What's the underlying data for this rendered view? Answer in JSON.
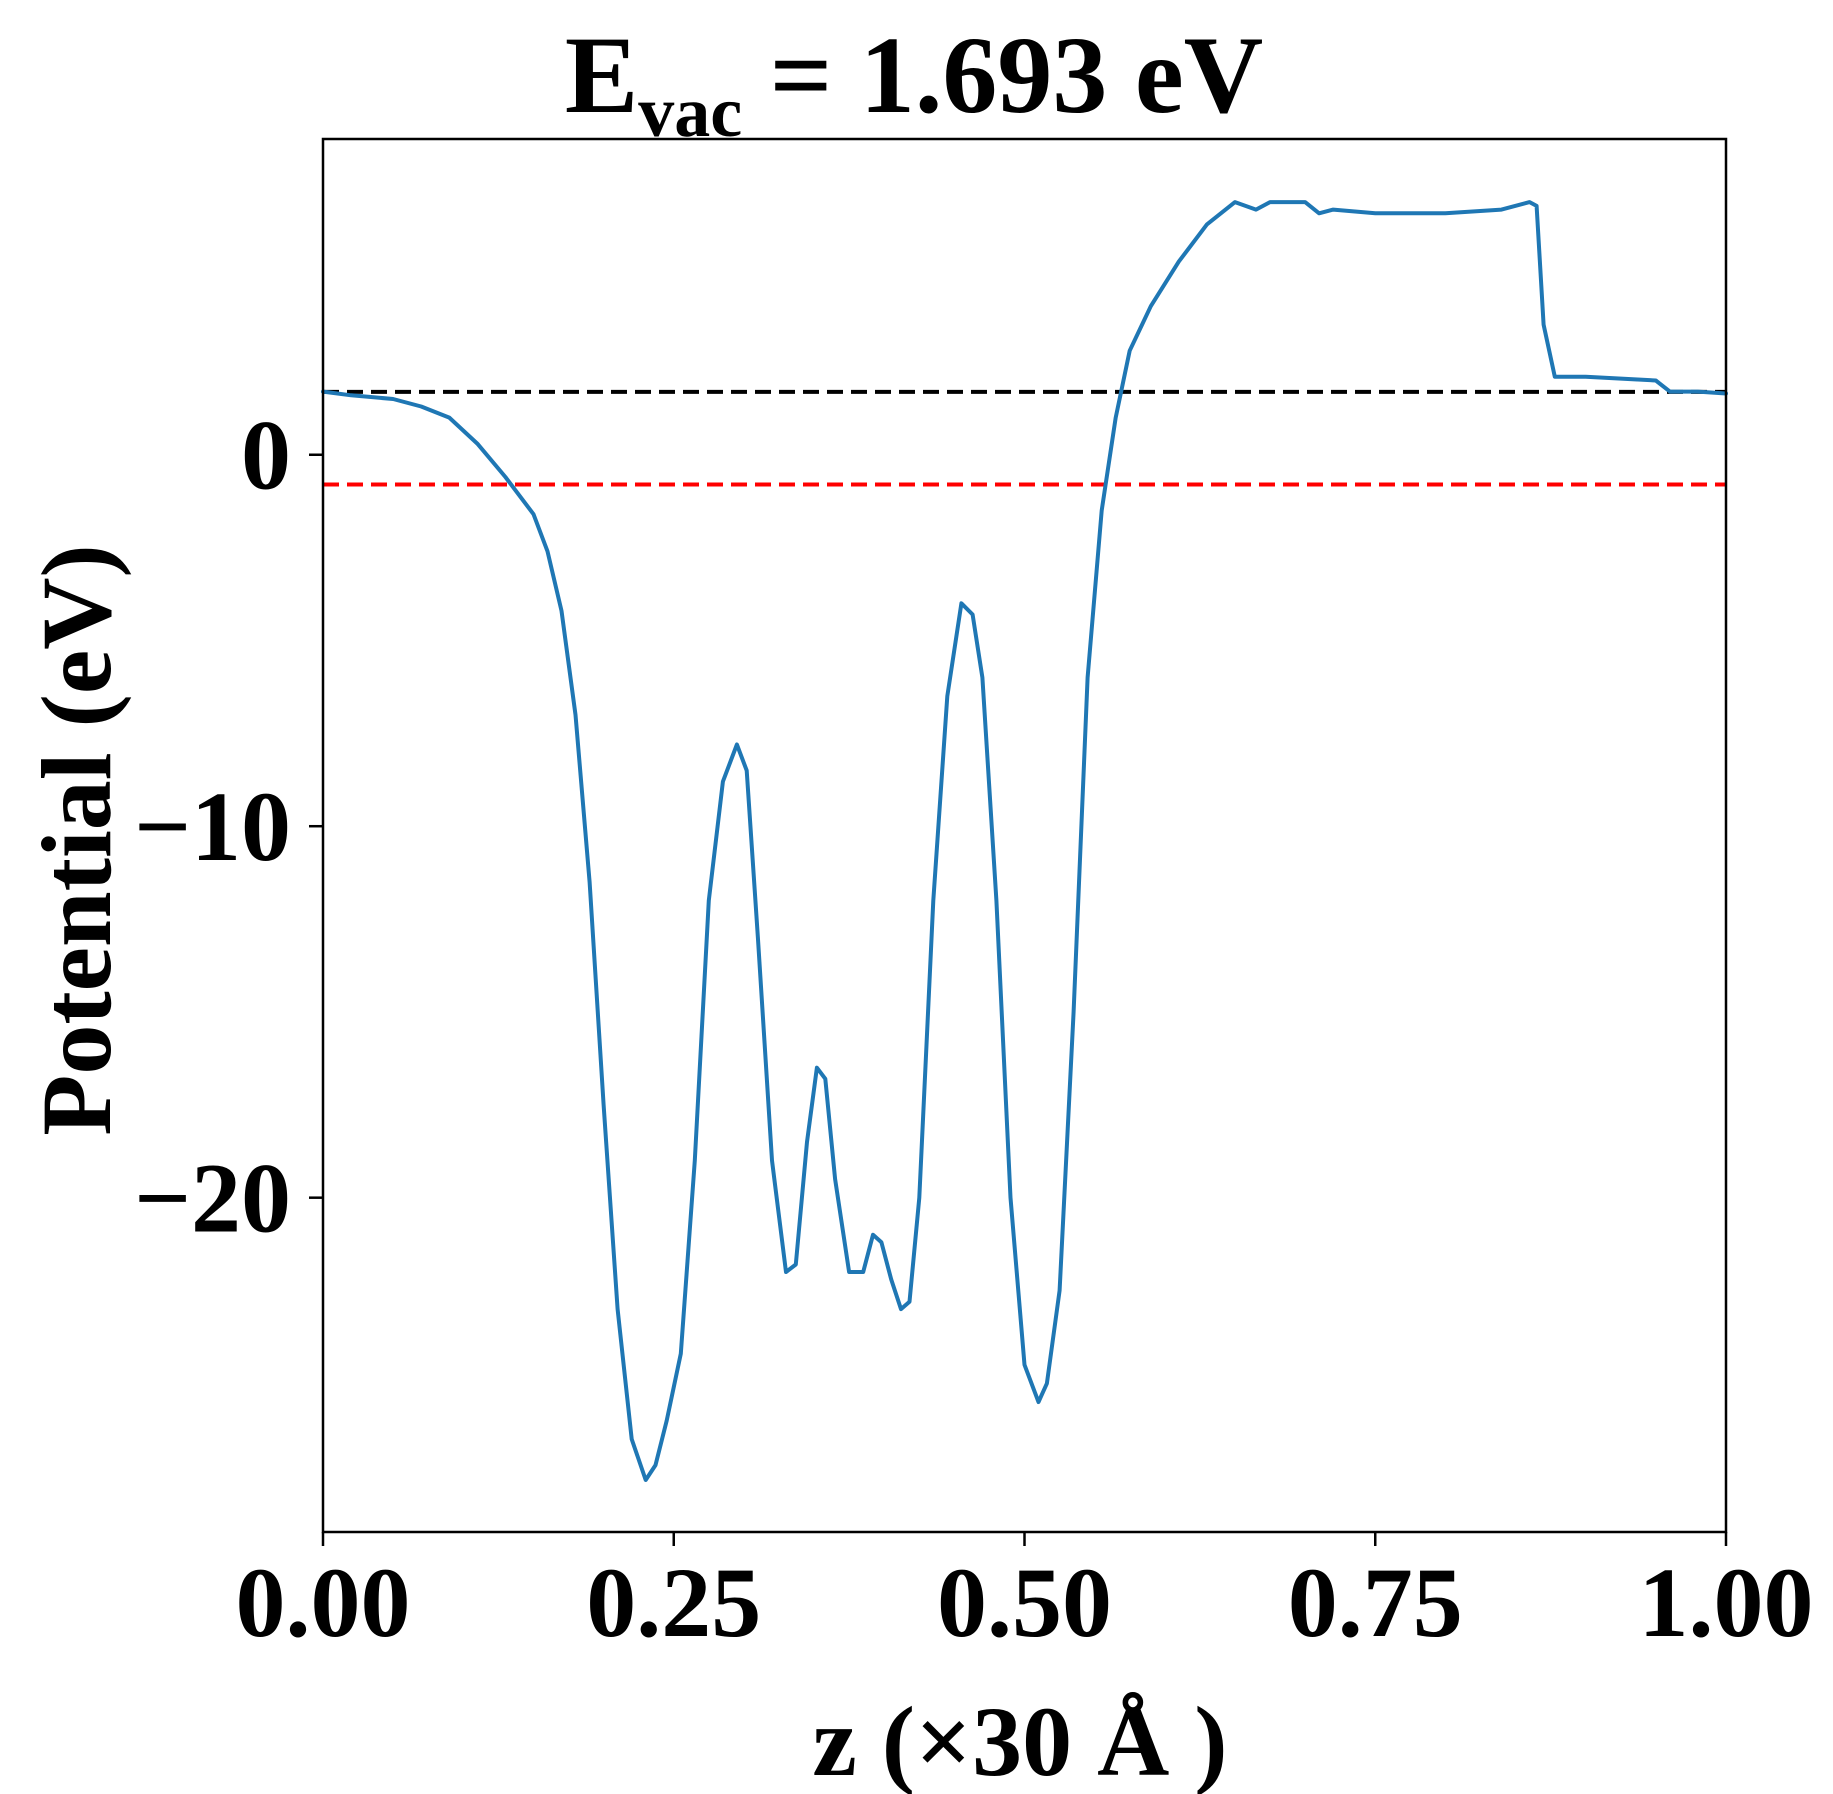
{
  "chart_data": {
    "type": "line",
    "title": {
      "base": "E",
      "subscript": "vac",
      "rest": " = 1.693 eV"
    },
    "xlabel": "z (×30 Å )",
    "ylabel": "Potential (eV)",
    "xlim": [
      0.0,
      1.0
    ],
    "ylim": [
      -29.0,
      8.5
    ],
    "xticks": [
      0.0,
      0.25,
      0.5,
      0.75,
      1.0
    ],
    "xtick_labels": [
      "0.00",
      "0.25",
      "0.50",
      "0.75",
      "1.00"
    ],
    "yticks": [
      0,
      -10,
      -20
    ],
    "ytick_labels": [
      "0",
      "−10",
      "−20"
    ],
    "grid": false,
    "legend": "none",
    "reference_lines": [
      {
        "y": 1.693,
        "color": "#000000",
        "style": "dashed"
      },
      {
        "y": -0.8,
        "color": "#ff0000",
        "style": "dashed"
      }
    ],
    "series": [
      {
        "color": "#1f77b4",
        "x": [
          0.0,
          0.02,
          0.05,
          0.07,
          0.09,
          0.11,
          0.13,
          0.15,
          0.16,
          0.17,
          0.18,
          0.19,
          0.2,
          0.21,
          0.22,
          0.23,
          0.237,
          0.245,
          0.255,
          0.265,
          0.275,
          0.285,
          0.295,
          0.302,
          0.31,
          0.32,
          0.33,
          0.337,
          0.345,
          0.352,
          0.358,
          0.365,
          0.375,
          0.385,
          0.392,
          0.398,
          0.405,
          0.412,
          0.418,
          0.425,
          0.435,
          0.445,
          0.455,
          0.463,
          0.47,
          0.48,
          0.49,
          0.5,
          0.51,
          0.516,
          0.525,
          0.535,
          0.545,
          0.555,
          0.565,
          0.575,
          0.59,
          0.61,
          0.63,
          0.65,
          0.665,
          0.675,
          0.7,
          0.71,
          0.72,
          0.75,
          0.8,
          0.84,
          0.86,
          0.865,
          0.87,
          0.878,
          0.9,
          0.95,
          0.96,
          0.98,
          1.0
        ],
        "y": [
          1.7,
          1.6,
          1.5,
          1.3,
          1.0,
          0.3,
          -0.6,
          -1.6,
          -2.6,
          -4.2,
          -7.0,
          -11.5,
          -17.5,
          -23.0,
          -26.5,
          -27.6,
          -27.2,
          -26.0,
          -24.2,
          -19.0,
          -12.0,
          -8.8,
          -7.8,
          -8.5,
          -13.0,
          -19.0,
          -22.0,
          -21.8,
          -18.5,
          -16.5,
          -16.8,
          -19.5,
          -22.0,
          -22.0,
          -21.0,
          -21.2,
          -22.2,
          -23.0,
          -22.8,
          -20.0,
          -12.0,
          -6.5,
          -4.0,
          -4.3,
          -6.0,
          -12.0,
          -20.0,
          -24.5,
          -25.5,
          -25.0,
          -22.5,
          -15.0,
          -6.0,
          -1.5,
          1.0,
          2.8,
          4.0,
          5.2,
          6.2,
          6.8,
          6.6,
          6.8,
          6.8,
          6.5,
          6.6,
          6.5,
          6.5,
          6.6,
          6.8,
          6.7,
          3.5,
          2.1,
          2.1,
          2.0,
          1.7,
          1.7,
          1.65
        ]
      }
    ]
  }
}
